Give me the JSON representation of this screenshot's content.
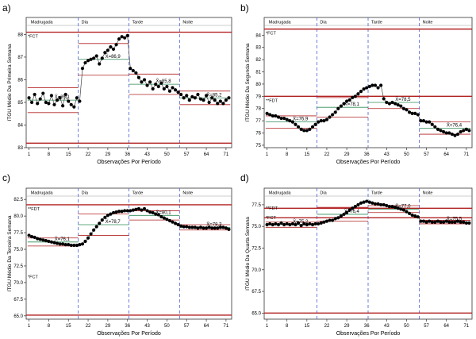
{
  "figure": {
    "panel_letters": [
      "a)",
      "b)",
      "c)",
      "d)"
    ],
    "colors": {
      "data": "#000000",
      "center_line": "#2e8b57",
      "control_limit": "#b22222",
      "threshold": "#b22222",
      "divider": "#5b6fd6",
      "grid": "#d0d0d0",
      "axis": "#333333"
    }
  },
  "chart_data": [
    {
      "type": "line",
      "letter": "a)",
      "title": "",
      "xlabel": "Observações Por Período",
      "ylabel": "ITGU Médio Da Primeira Semana",
      "xlim": [
        0,
        73
      ],
      "ylim": [
        83,
        88.4
      ],
      "xticks": [
        1,
        8,
        15,
        22,
        29,
        36,
        43,
        50,
        57,
        64,
        71
      ],
      "yticks": [
        83,
        84,
        85,
        86,
        87,
        88
      ],
      "period_labels": [
        "Madrugada",
        "Dia",
        "Tarde",
        "Noite"
      ],
      "period_boundaries": [
        18.5,
        36.5,
        54.5
      ],
      "thresholds": [
        {
          "label": "*FCT",
          "value": 88.1
        },
        {
          "label": "",
          "value": 83.2
        }
      ],
      "periods": [
        {
          "start": 1,
          "end": 18,
          "mean": 85.1,
          "mean_label": "X̄=85,1",
          "ucl": 85.65,
          "lcl": 84.55,
          "values": [
            85.2,
            85.0,
            85.35,
            84.95,
            85.15,
            85.4,
            85.0,
            84.95,
            85.3,
            84.9,
            85.1,
            85.2,
            84.85,
            85.35,
            85.05,
            84.9,
            84.8,
            85.2
          ]
        },
        {
          "start": 19,
          "end": 36,
          "mean": 86.9,
          "mean_label": "X̄=86,9",
          "ucl": 87.6,
          "lcl": 86.2,
          "values": [
            85.05,
            86.5,
            86.75,
            86.85,
            86.9,
            86.95,
            87.05,
            86.7,
            86.95,
            87.2,
            87.3,
            87.45,
            87.35,
            87.55,
            87.8,
            87.9,
            87.85,
            87.95
          ]
        },
        {
          "start": 37,
          "end": 54,
          "mean": 85.8,
          "mean_label": "X̄=85,8",
          "ucl": 86.25,
          "lcl": 85.35,
          "values": [
            86.5,
            86.4,
            86.3,
            86.1,
            85.9,
            86.0,
            85.75,
            85.9,
            85.6,
            85.8,
            85.7,
            85.85,
            85.6,
            85.7,
            85.5,
            85.65,
            85.55,
            85.45
          ]
        },
        {
          "start": 55,
          "end": 72,
          "mean": 85.2,
          "mean_label": "X̄=85,2",
          "ucl": 85.5,
          "lcl": 84.9,
          "values": [
            85.35,
            85.2,
            85.3,
            85.1,
            85.25,
            85.2,
            85.35,
            85.15,
            85.1,
            85.3,
            85.0,
            85.2,
            85.1,
            84.95,
            85.05,
            84.95,
            85.1,
            85.2
          ]
        }
      ]
    },
    {
      "type": "line",
      "letter": "b)",
      "title": "",
      "xlabel": "Observações Por Período",
      "ylabel": "ITGU Médio Da Segunda Semana",
      "xlim": [
        0,
        73
      ],
      "ylim": [
        74.8,
        84.8
      ],
      "xticks": [
        1,
        8,
        15,
        22,
        29,
        36,
        43,
        50,
        57,
        64,
        71
      ],
      "yticks": [
        75,
        76,
        77,
        78,
        79,
        80,
        81,
        82,
        83,
        84
      ],
      "period_labels": [
        "Madrugada",
        "Dia",
        "Tarde",
        "Noite"
      ],
      "period_boundaries": [
        18.5,
        36.5,
        54.5
      ],
      "thresholds": [
        {
          "label": "*FCT",
          "value": 84.5
        },
        {
          "label": "**FDT",
          "value": 79.0
        }
      ],
      "periods": [
        {
          "start": 1,
          "end": 18,
          "mean": 76.9,
          "mean_label": "X̄=76,9",
          "ucl": 77.4,
          "lcl": 76.4,
          "values": [
            77.6,
            77.5,
            77.4,
            77.4,
            77.3,
            77.2,
            77.2,
            77.1,
            77.0,
            76.9,
            76.7,
            76.5,
            76.3,
            76.2,
            76.2,
            76.3,
            76.5,
            76.7
          ]
        },
        {
          "start": 19,
          "end": 36,
          "mean": 78.1,
          "mean_label": "X̄=78,1",
          "ucl": 78.9,
          "lcl": 77.3,
          "values": [
            76.9,
            77.0,
            77.0,
            77.1,
            77.3,
            77.5,
            77.7,
            78.0,
            78.2,
            78.4,
            78.6,
            78.7,
            78.9,
            79.0,
            79.2,
            79.4,
            79.6,
            79.7
          ]
        },
        {
          "start": 37,
          "end": 54,
          "mean": 78.5,
          "mean_label": "X̄=78,5",
          "ucl": 79.0,
          "lcl": 78.0,
          "values": [
            79.8,
            79.9,
            79.9,
            79.7,
            79.9,
            78.8,
            78.5,
            78.4,
            78.5,
            78.4,
            78.3,
            78.2,
            78.0,
            77.9,
            77.7,
            77.6,
            77.6,
            77.5
          ]
        },
        {
          "start": 55,
          "end": 72,
          "mean": 76.4,
          "mean_label": "X̄=76,4",
          "ucl": 76.9,
          "lcl": 75.9,
          "values": [
            77.0,
            77.0,
            76.9,
            76.9,
            76.7,
            76.5,
            76.3,
            76.2,
            76.1,
            76.0,
            76.0,
            75.9,
            75.8,
            75.9,
            76.1,
            76.2,
            76.3,
            76.2
          ]
        }
      ]
    },
    {
      "type": "line",
      "letter": "c)",
      "title": "",
      "xlabel": "Observações Por Período",
      "ylabel": "ITGU Médio Da Terceira Semana",
      "xlim": [
        0,
        73
      ],
      "ylim": [
        64.5,
        83
      ],
      "xticks": [
        1,
        8,
        15,
        22,
        29,
        36,
        43,
        50,
        57,
        64,
        71
      ],
      "yticks": [
        65.0,
        67.5,
        70.0,
        72.5,
        75.0,
        77.5,
        80.0,
        82.5
      ],
      "period_labels": [
        "Madrugada",
        "Dia",
        "Tarde",
        "Noite"
      ],
      "period_boundaries": [
        18.5,
        36.5,
        54.5
      ],
      "thresholds": [
        {
          "label": "**FDT",
          "value": 81.7
        },
        {
          "label": "*FCT",
          "value": 65.1
        }
      ],
      "threshold_label_values": [
        81.7,
        71.5
      ],
      "periods": [
        {
          "start": 1,
          "end": 18,
          "mean": 76.1,
          "mean_label": "X̄=76,1",
          "ucl": 76.7,
          "lcl": 75.5,
          "values": [
            77.1,
            76.9,
            76.8,
            76.6,
            76.5,
            76.4,
            76.3,
            76.2,
            76.1,
            76.0,
            75.9,
            75.8,
            75.8,
            75.7,
            75.7,
            75.6,
            75.6,
            75.6
          ]
        },
        {
          "start": 19,
          "end": 36,
          "mean": 78.7,
          "mean_label": "X̄=78,7",
          "ucl": 80.3,
          "lcl": 77.1,
          "values": [
            75.7,
            75.8,
            76.2,
            76.7,
            77.3,
            77.9,
            78.4,
            78.9,
            79.4,
            79.8,
            80.1,
            80.3,
            80.5,
            80.6,
            80.7,
            80.7,
            80.8,
            80.8
          ]
        },
        {
          "start": 37,
          "end": 54,
          "mean": 80.1,
          "mean_label": "X̄=80,1",
          "ucl": 80.8,
          "lcl": 79.4,
          "values": [
            80.8,
            80.9,
            81.0,
            81.1,
            80.9,
            81.1,
            80.8,
            80.6,
            80.5,
            80.3,
            80.2,
            79.9,
            79.7,
            79.5,
            79.3,
            79.1,
            78.9,
            78.7
          ]
        },
        {
          "start": 55,
          "end": 72,
          "mean": 78.3,
          "mean_label": "X̄=78,3",
          "ucl": 78.7,
          "lcl": 77.9,
          "values": [
            78.5,
            78.4,
            78.4,
            78.3,
            78.3,
            78.3,
            78.2,
            78.3,
            78.2,
            78.2,
            78.3,
            78.2,
            78.2,
            78.2,
            78.3,
            78.3,
            78.2,
            78.0
          ]
        }
      ]
    },
    {
      "type": "line",
      "letter": "d)",
      "title": "",
      "xlabel": "Observações Por Período",
      "ylabel": "ITGU Médio Da Quarta Semana",
      "xlim": [
        0,
        73
      ],
      "ylim": [
        64.3,
        78.5
      ],
      "xticks": [
        1,
        8,
        15,
        22,
        29,
        36,
        43,
        50,
        57,
        64,
        71
      ],
      "yticks": [
        65.0,
        67.5,
        70.0,
        72.5,
        75.0,
        77.5
      ],
      "period_labels": [
        "Madrugada",
        "Dia",
        "Tarde",
        "Noite"
      ],
      "period_boundaries": [
        18.5,
        36.5,
        54.5
      ],
      "thresholds": [
        {
          "label": "**FDT",
          "value": 77.1
        },
        {
          "label": "*FCT",
          "value": 76.0
        },
        {
          "label": "",
          "value": 65.0
        }
      ],
      "threshold_label_values": [
        77.6,
        76.5
      ],
      "periods": [
        {
          "start": 1,
          "end": 18,
          "mean": 75.2,
          "mean_label": "X̄=75,2",
          "ucl": 75.5,
          "lcl": 74.9,
          "values": [
            75.2,
            75.3,
            75.2,
            75.3,
            75.2,
            75.4,
            75.2,
            75.3,
            75.2,
            75.3,
            75.2,
            75.4,
            75.1,
            75.3,
            75.2,
            75.3,
            75.2,
            75.3
          ]
        },
        {
          "start": 19,
          "end": 36,
          "mean": 76.4,
          "mean_label": "X̄=76,4",
          "ucl": 77.2,
          "lcl": 75.6,
          "values": [
            75.3,
            75.4,
            75.5,
            75.6,
            75.7,
            75.7,
            75.9,
            76.0,
            76.2,
            76.4,
            76.6,
            76.9,
            77.1,
            77.3,
            77.5,
            77.7,
            77.8,
            77.9
          ]
        },
        {
          "start": 37,
          "end": 54,
          "mean": 77.0,
          "mean_label": "X̄=77,0",
          "ucl": 77.4,
          "lcl": 76.6,
          "values": [
            77.8,
            77.7,
            77.6,
            77.6,
            77.5,
            77.5,
            77.4,
            77.3,
            77.3,
            77.2,
            77.1,
            77.0,
            76.9,
            76.7,
            76.5,
            76.3,
            76.2,
            76.1
          ]
        },
        {
          "start": 55,
          "end": 72,
          "mean": 75.5,
          "mean_label": "X̄=75,5",
          "ucl": 75.7,
          "lcl": 75.3,
          "values": [
            75.6,
            75.6,
            75.5,
            75.6,
            75.5,
            75.5,
            75.6,
            75.5,
            75.5,
            75.6,
            75.5,
            75.5,
            75.5,
            75.6,
            75.5,
            75.5,
            75.4,
            75.4
          ]
        }
      ]
    }
  ]
}
